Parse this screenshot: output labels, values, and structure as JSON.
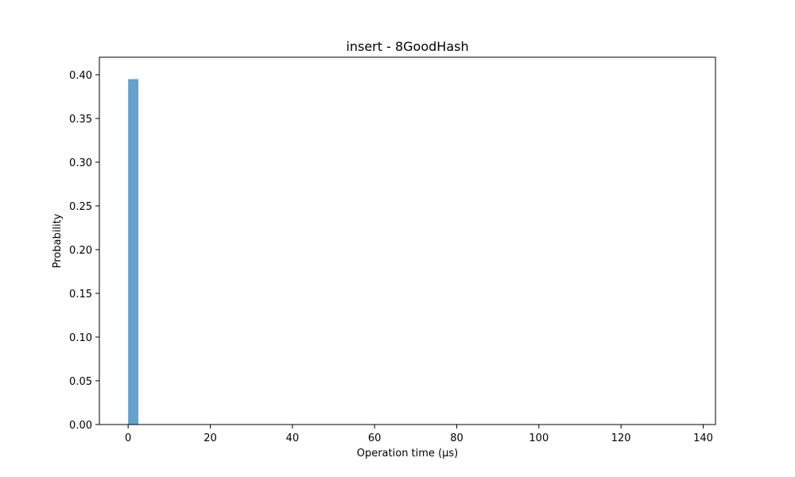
{
  "chart_data": {
    "type": "bar",
    "title": "insert -  8GoodHash",
    "xlabel": "Operation time (µs)",
    "ylabel": "Probability",
    "xlim": [
      -7,
      143
    ],
    "ylim": [
      0,
      0.42
    ],
    "x_ticks": [
      0,
      20,
      40,
      60,
      80,
      100,
      120,
      140
    ],
    "y_ticks": [
      0.0,
      0.05,
      0.1,
      0.15,
      0.2,
      0.25,
      0.3,
      0.35,
      0.4
    ],
    "grid": false,
    "series": [
      {
        "name": "insert",
        "color": "#4a90c4",
        "bins": [
          {
            "x0": 0,
            "x1": 2.5,
            "value": 0.395
          }
        ]
      }
    ]
  }
}
